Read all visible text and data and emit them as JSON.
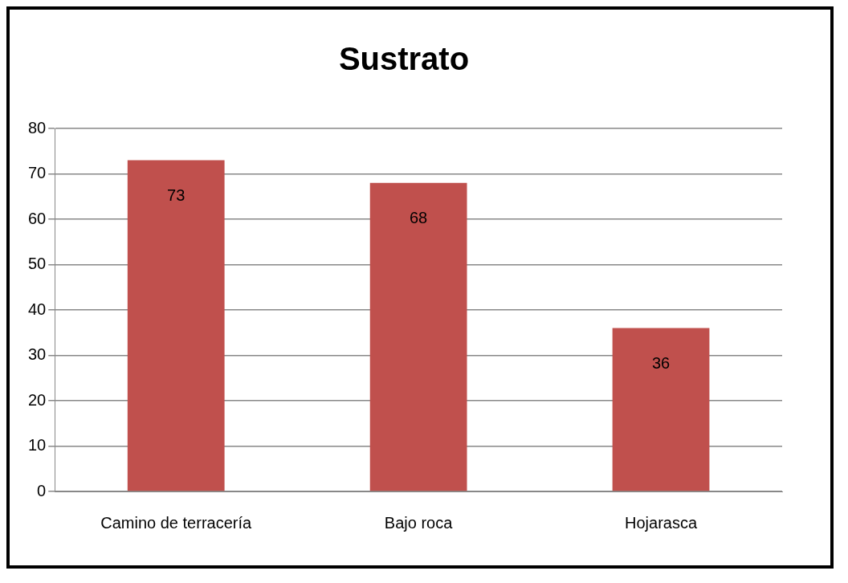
{
  "chart_data": {
    "type": "bar",
    "title": "Sustrato",
    "categories": [
      "Camino de terracería",
      "Bajo roca",
      "Hojarasca"
    ],
    "values": [
      73,
      68,
      36
    ],
    "color": "#c0504d",
    "ylim": [
      0,
      80
    ],
    "yticks": [
      0,
      10,
      20,
      30,
      40,
      50,
      60,
      70,
      80
    ],
    "grid": "y",
    "data_labels": true
  }
}
